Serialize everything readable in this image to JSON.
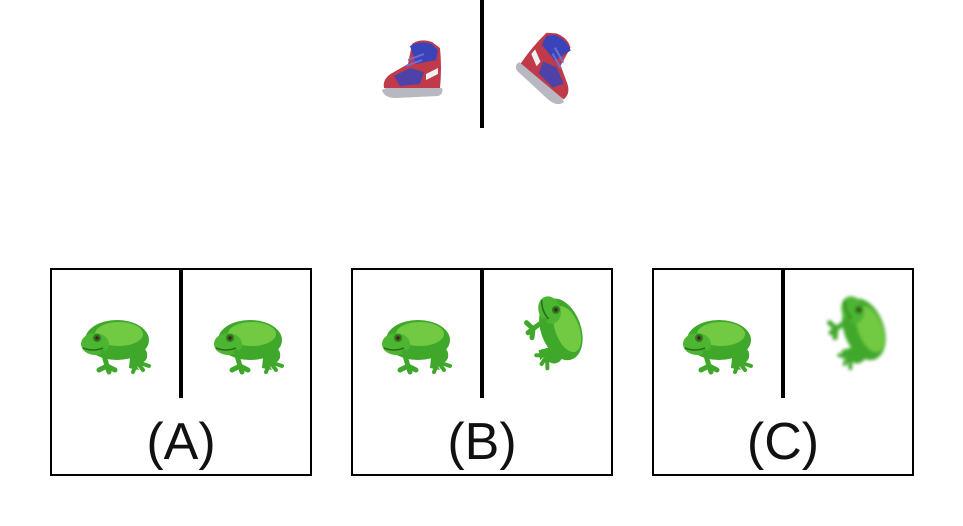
{
  "example": {
    "left_image_icon": "sneaker-icon",
    "right_image_icon": "sneaker-icon",
    "relation": "rotated"
  },
  "options": [
    {
      "label": "(A)",
      "left_icon": "frog-icon",
      "right_icon": "frog-icon"
    },
    {
      "label": "(B)",
      "left_icon": "frog-icon",
      "right_icon": "frog-icon"
    },
    {
      "label": "(C)",
      "left_icon": "frog-icon",
      "right_icon": "frog-icon"
    }
  ],
  "colors": {
    "frog_green": "#3fa82a",
    "frog_light": "#7fd24a",
    "shoe_red": "#c03a4a",
    "shoe_blue": "#3a44b8"
  }
}
